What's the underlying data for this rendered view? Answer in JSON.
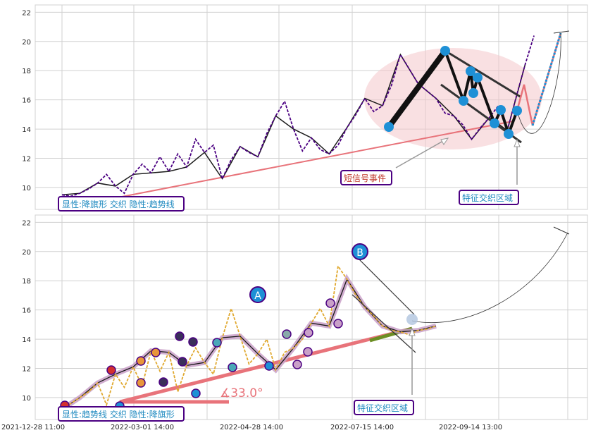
{
  "colors": {
    "grid": "#d0d0d0",
    "price": "#4b0082",
    "price_bottom": "#e0a82e",
    "trend": "#e8737a",
    "wave_dark": "#1a1a1a",
    "node_blue": "#1e90d6",
    "label_border": "#4b0082",
    "label_text": "#1f8ac0",
    "ellipse": "#f4c6cb",
    "green_seg": "#6b8e23"
  },
  "x_ticks": [
    "2021-12-28 11:00",
    "2022-03-01 14:00",
    "2022-04-28 14:00",
    "2022-07-15 14:00",
    "2022-09-14 13:00"
  ],
  "chart_data": [
    {
      "type": "line",
      "ylim": [
        8.5,
        22.5
      ],
      "y_ticks": [
        10,
        12,
        14,
        16,
        18,
        20,
        22
      ],
      "x_index_range": [
        0,
        280
      ],
      "series": [
        {
          "x": [
            0,
            5,
            10,
            15,
            20,
            25,
            30,
            35,
            40,
            45,
            50,
            55,
            60,
            65,
            70,
            75,
            80,
            85,
            90,
            95,
            100,
            105,
            110,
            115,
            120,
            125,
            130,
            135,
            140,
            145,
            150,
            155,
            160,
            165,
            170,
            175,
            180,
            185,
            190,
            195,
            200,
            205,
            210,
            215,
            220,
            225,
            230,
            235,
            240,
            245,
            250,
            255,
            260,
            265
          ],
          "y": [
            9.5,
            9.4,
            9.6,
            9.9,
            10.3,
            10.9,
            10.1,
            9.6,
            10.9,
            11.6,
            11.0,
            12.1,
            11.1,
            12.3,
            11.4,
            13.3,
            12.4,
            12.9,
            10.6,
            11.9,
            12.8,
            12.4,
            12.1,
            13.7,
            14.9,
            15.9,
            14.0,
            12.5,
            13.4,
            12.6,
            12.3,
            12.9,
            14.1,
            15.0,
            16.1,
            15.2,
            15.6,
            17.0,
            19.1,
            18.1,
            17.1,
            16.6,
            16.1,
            15.1,
            14.9,
            14.3,
            13.3,
            14.1,
            14.8,
            15.6,
            13.9,
            16.2,
            18.4,
            20.4
          ]
        }
      ],
      "annotations": {
        "labels": [
          "显性:降旗形 交织 隐性:趋势线",
          "短信号事件",
          "特征交织区域"
        ]
      }
    },
    {
      "type": "line",
      "ylim": [
        8.5,
        22.5
      ],
      "y_ticks": [
        10,
        12,
        14,
        16,
        18,
        20,
        22
      ],
      "x_index_range": [
        0,
        280
      ],
      "series": [
        {
          "x": [
            0,
            5,
            10,
            15,
            20,
            25,
            30,
            35,
            40,
            45,
            50,
            55,
            60,
            65,
            70,
            75,
            80,
            85,
            90,
            95,
            100,
            105,
            110,
            115,
            120,
            125,
            130,
            135,
            140,
            145,
            150,
            155,
            160,
            165,
            170,
            175,
            180,
            185,
            190,
            195,
            200,
            205,
            210
          ],
          "y": [
            9.2,
            9.6,
            10.0,
            10.4,
            11.0,
            9.5,
            11.6,
            10.7,
            12.1,
            10.8,
            13.2,
            11.8,
            13.1,
            10.4,
            12.2,
            13.4,
            12.4,
            11.6,
            14.1,
            16.1,
            14.2,
            12.3,
            13.0,
            14.0,
            11.9,
            13.1,
            13.4,
            14.0,
            15.1,
            16.1,
            14.9,
            19.0,
            18.1,
            17.0,
            16.2,
            15.6,
            14.9,
            14.6,
            14.5,
            14.3,
            14.6,
            14.7,
            14.9
          ]
        }
      ],
      "annotations": {
        "angle": "∡33.0°",
        "markers": [
          "A",
          "B"
        ],
        "labels": [
          "显性:趋势线 交织 隐性:降旗形",
          "特征交织区域"
        ]
      }
    }
  ]
}
